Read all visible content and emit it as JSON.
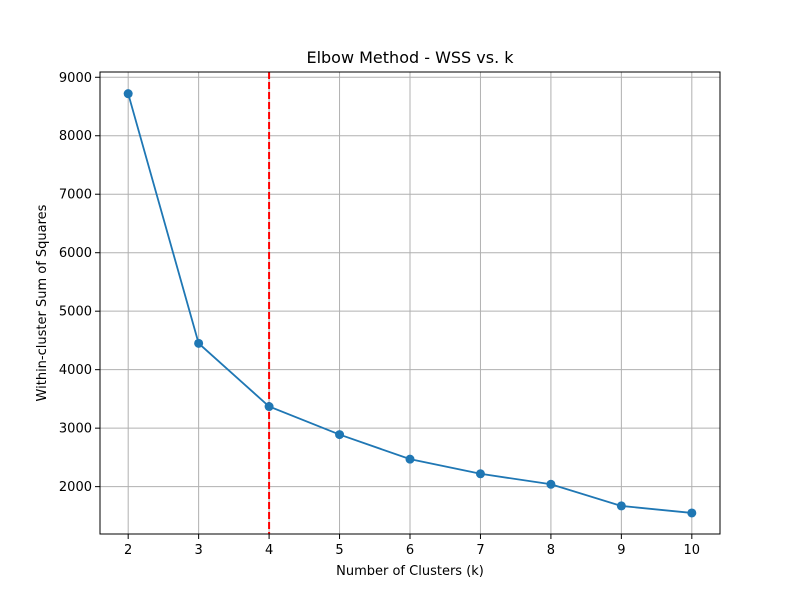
{
  "chart_data": {
    "type": "line",
    "title": "Elbow Method - WSS vs. k",
    "xlabel": "Number of Clusters (k)",
    "ylabel": "Within-cluster Sum of Squares",
    "x": [
      2,
      3,
      4,
      5,
      6,
      7,
      8,
      9,
      10
    ],
    "series": [
      {
        "values": [
          8720,
          4450,
          3370,
          2890,
          2470,
          2220,
          2040,
          1670,
          1550
        ],
        "color": "#1f77b4",
        "marker": "circle"
      }
    ],
    "xlim": [
      1.6,
      10.4
    ],
    "ylim": [
      1190,
      9090
    ],
    "xticks": [
      2,
      3,
      4,
      5,
      6,
      7,
      8,
      9,
      10
    ],
    "yticks": [
      2000,
      3000,
      4000,
      5000,
      6000,
      7000,
      8000,
      9000
    ],
    "grid": true,
    "reference_line": {
      "axis": "x",
      "value": 4,
      "color": "#ff0000",
      "style": "dashed"
    }
  }
}
